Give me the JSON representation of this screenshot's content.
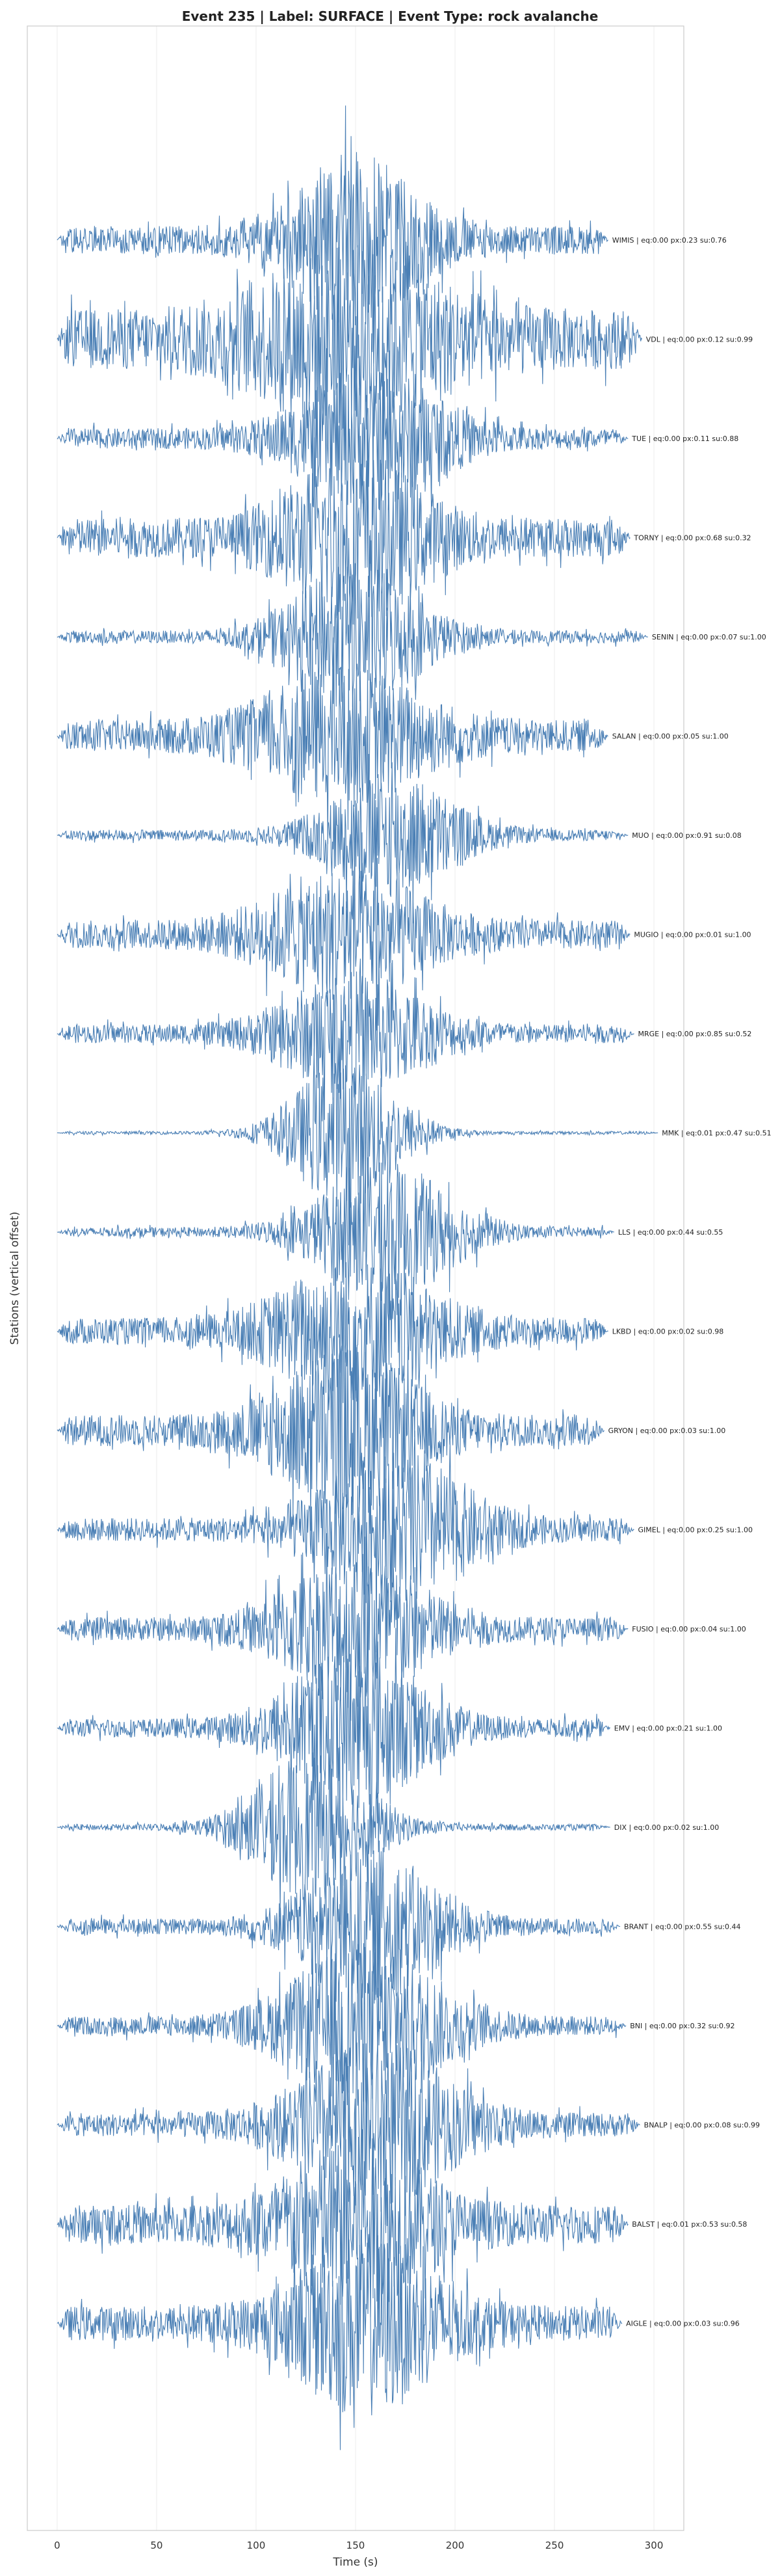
{
  "chart_data": {
    "type": "line",
    "title": "Event 235 | Label: SURFACE | Event Type: rock avalanche",
    "xlabel": "Time (s)",
    "ylabel": "Stations (vertical offset)",
    "xlim": [
      -15,
      315
    ],
    "xticks": [
      0,
      50,
      100,
      150,
      200,
      250,
      300
    ],
    "xtick_labels": [
      "0",
      "50",
      "100",
      "150",
      "200",
      "250",
      "300"
    ],
    "grid": true,
    "line_color": "#4a7fb5",
    "series": [
      {
        "station": "WIMIS",
        "label": "WIMIS | eq:0.00 px:0.23 su:0.76",
        "t_end": 277,
        "center": 150,
        "bg": 0.18,
        "peak": 0.95,
        "width": 38
      },
      {
        "station": "VDL",
        "label": "VDL | eq:0.00 px:0.12 su:0.99",
        "t_end": 294,
        "center": 148,
        "bg": 0.38,
        "peak": 0.85,
        "width": 55
      },
      {
        "station": "TUE",
        "label": "TUE | eq:0.00 px:0.11 su:0.88",
        "t_end": 287,
        "center": 158,
        "bg": 0.13,
        "peak": 0.82,
        "width": 42
      },
      {
        "station": "TORNY",
        "label": "TORNY | eq:0.00 px:0.68 su:0.32",
        "t_end": 288,
        "center": 150,
        "bg": 0.25,
        "peak": 0.88,
        "width": 40
      },
      {
        "station": "SENIN",
        "label": "SENIN | eq:0.00 px:0.07 su:1.00",
        "t_end": 297,
        "center": 150,
        "bg": 0.08,
        "peak": 0.88,
        "width": 38
      },
      {
        "station": "SALAN",
        "label": "SALAN | eq:0.00 px:0.05 su:1.00",
        "t_end": 277,
        "center": 145,
        "bg": 0.2,
        "peak": 0.72,
        "width": 48
      },
      {
        "station": "MUO",
        "label": "MUO | eq:0.00 px:0.91 su:0.08",
        "t_end": 287,
        "center": 168,
        "bg": 0.07,
        "peak": 0.75,
        "width": 38
      },
      {
        "station": "MUGIO",
        "label": "MUGIO | eq:0.00 px:0.01 su:1.00",
        "t_end": 288,
        "center": 145,
        "bg": 0.18,
        "peak": 0.72,
        "width": 45
      },
      {
        "station": "MRGE",
        "label": "MRGE | eq:0.00 px:0.85 su:0.52",
        "t_end": 290,
        "center": 150,
        "bg": 0.12,
        "peak": 0.7,
        "width": 42
      },
      {
        "station": "MMK",
        "label": "MMK | eq:0.01 px:0.47 su:0.51",
        "t_end": 302,
        "center": 145,
        "bg": 0.02,
        "peak": 0.95,
        "width": 32
      },
      {
        "station": "LLS",
        "label": "LLS | eq:0.00 px:0.44 su:0.55",
        "t_end": 280,
        "center": 165,
        "bg": 0.06,
        "peak": 0.85,
        "width": 40
      },
      {
        "station": "LKBD",
        "label": "LKBD | eq:0.00 px:0.02 su:0.98",
        "t_end": 277,
        "center": 150,
        "bg": 0.17,
        "peak": 0.8,
        "width": 45
      },
      {
        "station": "GRYON",
        "label": "GRYON | eq:0.00 px:0.03 su:1.00",
        "t_end": 275,
        "center": 145,
        "bg": 0.2,
        "peak": 0.95,
        "width": 40
      },
      {
        "station": "GIMEL",
        "label": "GIMEL | eq:0.00 px:0.25 su:1.00",
        "t_end": 290,
        "center": 170,
        "bg": 0.15,
        "peak": 0.9,
        "width": 42
      },
      {
        "station": "FUSIO",
        "label": "FUSIO | eq:0.00 px:0.04 su:1.00",
        "t_end": 287,
        "center": 150,
        "bg": 0.15,
        "peak": 0.9,
        "width": 40
      },
      {
        "station": "EMV",
        "label": "EMV | eq:0.00 px:0.21 su:1.00",
        "t_end": 278,
        "center": 150,
        "bg": 0.12,
        "peak": 0.95,
        "width": 40
      },
      {
        "station": "DIX",
        "label": "DIX | eq:0.00 px:0.02 su:1.00",
        "t_end": 278,
        "center": 128,
        "bg": 0.04,
        "peak": 0.92,
        "width": 35
      },
      {
        "station": "BRANT",
        "label": "BRANT | eq:0.00 px:0.55 su:0.44",
        "t_end": 283,
        "center": 158,
        "bg": 0.1,
        "peak": 0.9,
        "width": 40
      },
      {
        "station": "BNI",
        "label": "BNI | eq:0.00 px:0.32 su:0.92",
        "t_end": 286,
        "center": 155,
        "bg": 0.12,
        "peak": 0.95,
        "width": 45
      },
      {
        "station": "BNALP",
        "label": "BNALP | eq:0.00 px:0.08 su:0.99",
        "t_end": 293,
        "center": 160,
        "bg": 0.15,
        "peak": 0.95,
        "width": 45
      },
      {
        "station": "BALST",
        "label": "BALST | eq:0.01 px:0.53 su:0.58",
        "t_end": 287,
        "center": 150,
        "bg": 0.25,
        "peak": 0.9,
        "width": 42
      },
      {
        "station": "AIGLE",
        "label": "AIGLE | eq:0.00 px:0.03 su:0.96",
        "t_end": 284,
        "center": 155,
        "bg": 0.22,
        "peak": 1.0,
        "width": 42
      }
    ]
  }
}
